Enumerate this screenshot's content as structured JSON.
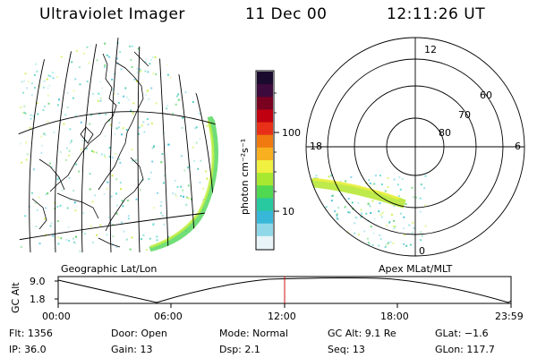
{
  "header": {
    "instrument": "Ultraviolet Imager",
    "date": "11 Dec 00",
    "time": "12:11:26 UT"
  },
  "panels": {
    "geographic_label": "Geographic Lat/Lon",
    "apex_label": "Apex MLat/MLT"
  },
  "colorbar": {
    "unit": "photon cm⁻²s⁻¹",
    "ticks": [
      "100",
      "10"
    ],
    "colors": [
      "#1a0a2e",
      "#3d0a3d",
      "#7a0020",
      "#c00010",
      "#e83018",
      "#f07a10",
      "#f8b020",
      "#f0f040",
      "#a8e830",
      "#50d850",
      "#28c8a0",
      "#38b8d8",
      "#90d8e8",
      "#e8f4f8"
    ]
  },
  "polar": {
    "mlt_labels": [
      "12",
      "18",
      "6",
      "0"
    ],
    "mlat_labels": [
      "60",
      "70",
      "80"
    ]
  },
  "timeline": {
    "ylabel": "GC Alt",
    "yticks": [
      "9.0",
      "1.8"
    ],
    "xticks": [
      "00:00",
      "06:00",
      "12:00",
      "18:00",
      "23:59"
    ],
    "marker_time": "12:11",
    "marker_color": "#d01010"
  },
  "info": {
    "flt": "Flt: 1356",
    "ip": "IP: 36.0",
    "door": "Door: Open",
    "gain": "Gain: 13",
    "mode": "Mode: Normal",
    "dsp": "Dsp:    2.1",
    "gcalt": "GC Alt: 9.1 Re",
    "seq": "Seq: 13",
    "glat": "GLat:  −1.6",
    "glon": "GLon: 117.7"
  }
}
